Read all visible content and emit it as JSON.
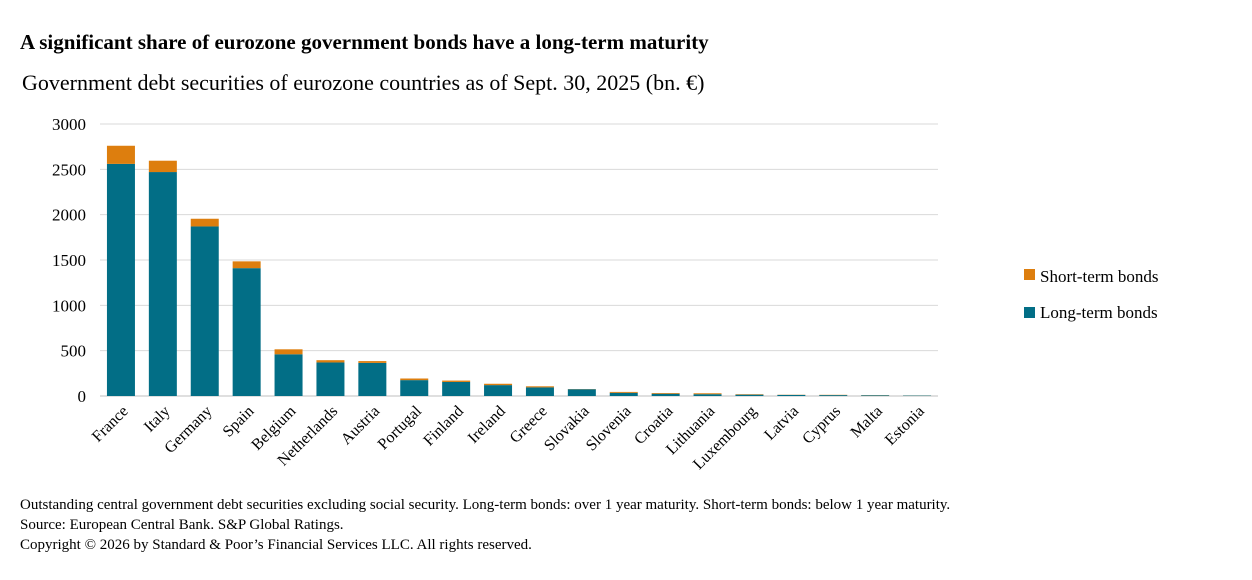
{
  "header": {
    "title": "A significant share of eurozone government bonds have a long-term maturity",
    "subtitle": "Government debt securities of eurozone countries as of Sept. 30, 2025 (bn. €)"
  },
  "footer": {
    "note": "Outstanding central government debt securities excluding social security. Long-term bonds: over 1 year maturity. Short-term bonds: below 1 year maturity.",
    "source": "Source: European Central Bank. S&P Global Ratings.",
    "copyright": "Copyright © 2026 by Standard & Poor’s Financial Services LLC. All rights reserved."
  },
  "colors": {
    "long_term": "#026E86",
    "short_term": "#DD7E0E",
    "grid": "#D9D9D9",
    "axis": "#BFBFBF"
  },
  "chart_data": {
    "type": "bar",
    "stacked": true,
    "title": "A significant share of eurozone government bonds have a long-term maturity",
    "subtitle": "Government debt securities of eurozone countries as of Sept. 30, 2025 (bn. €)",
    "xlabel": "",
    "ylabel": "",
    "ylim": [
      0,
      3000
    ],
    "yticks": [
      0,
      500,
      1000,
      1500,
      2000,
      2500,
      3000
    ],
    "grid": true,
    "legend_position": "right",
    "categories": [
      "France",
      "Italy",
      "Germany",
      "Spain",
      "Belgium",
      "Netherlands",
      "Austria",
      "Portugal",
      "Finland",
      "Ireland",
      "Greece",
      "Slovakia",
      "Slovenia",
      "Croatia",
      "Lithuania",
      "Luxembourg",
      "Latvia",
      "Cyprus",
      "Malta",
      "Estonia"
    ],
    "series": [
      {
        "name": "Long-term bonds",
        "color": "#026E86",
        "values": [
          2560,
          2470,
          1870,
          1410,
          460,
          370,
          365,
          175,
          155,
          120,
          95,
          75,
          35,
          25,
          20,
          15,
          12,
          10,
          8,
          5
        ]
      },
      {
        "name": "Short-term bonds",
        "color": "#DD7E0E",
        "values": [
          200,
          125,
          85,
          75,
          55,
          25,
          20,
          18,
          15,
          15,
          12,
          2,
          10,
          8,
          10,
          5,
          2,
          3,
          2,
          1
        ]
      }
    ],
    "legend": [
      "Short-term bonds",
      "Long-term bonds"
    ]
  }
}
